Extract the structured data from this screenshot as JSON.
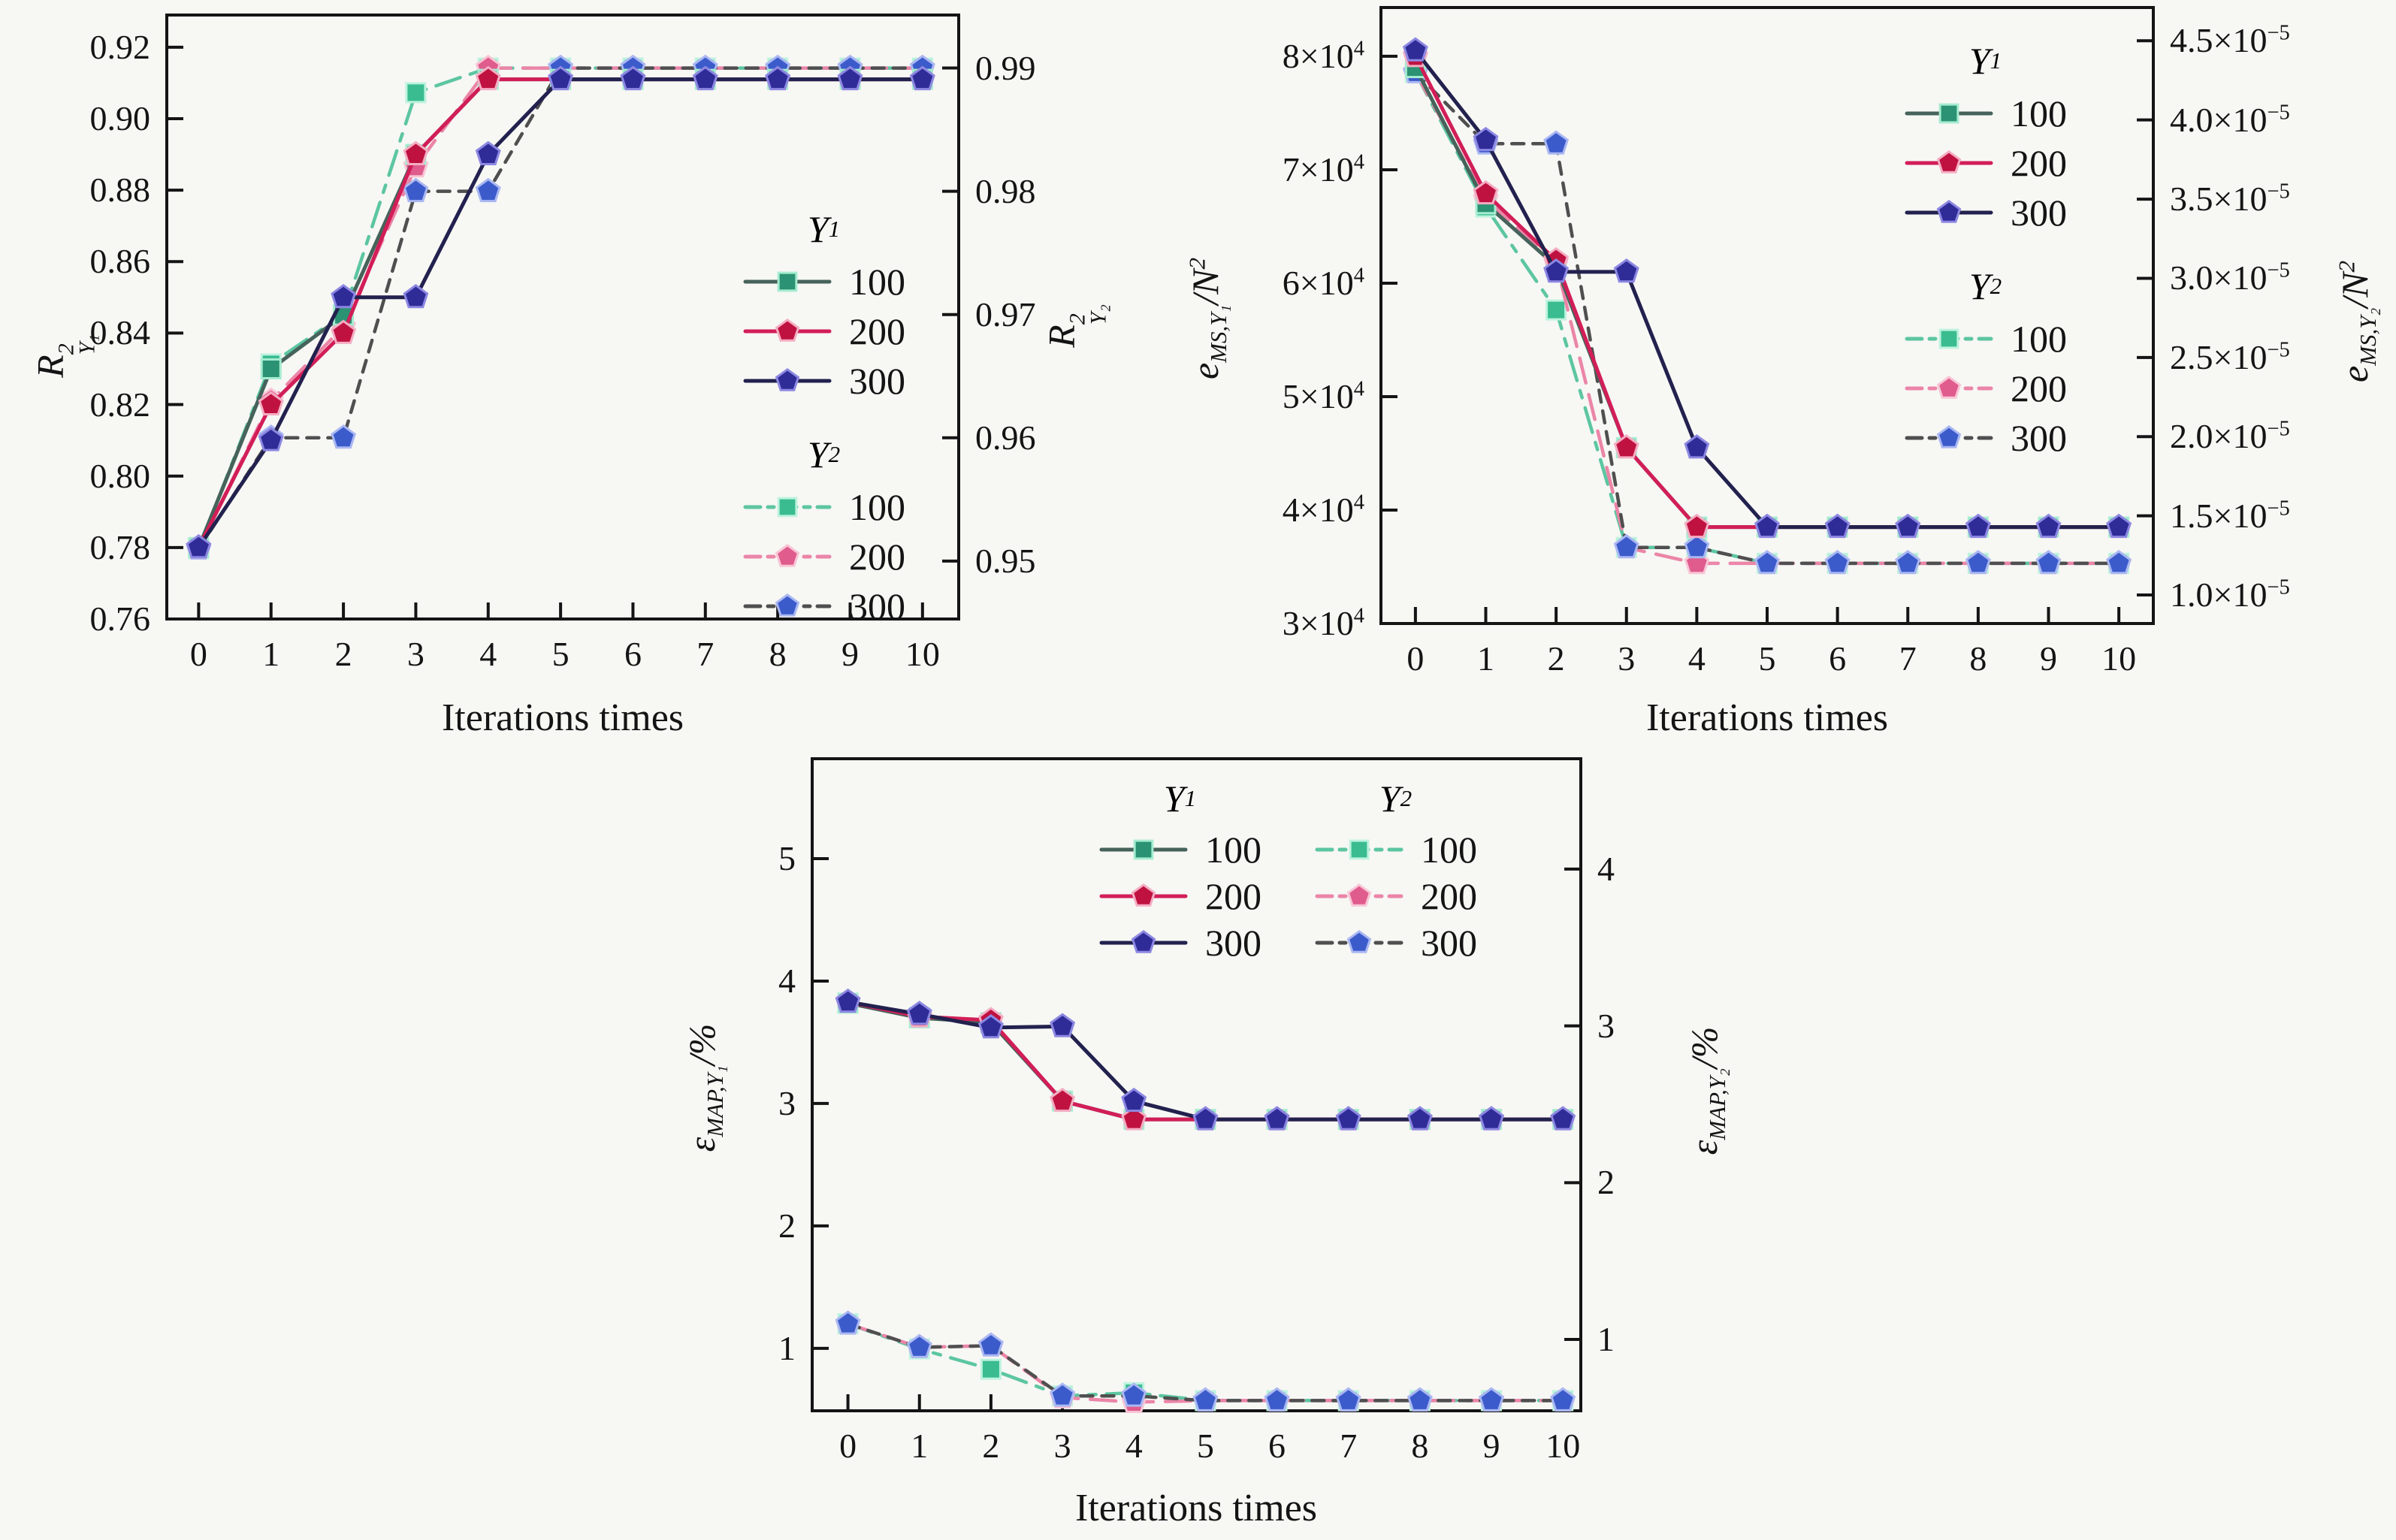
{
  "figure": {
    "background": "#f7f7f4",
    "axis_color": "#141414",
    "x_axis_label": "Iterations times"
  },
  "chart_data": [
    {
      "id": "c1",
      "type": "line",
      "x": [
        0,
        1,
        2,
        3,
        4,
        5,
        6,
        7,
        8,
        9,
        10
      ],
      "xlabel": "Iterations times",
      "x_ticks": [
        "0",
        "1",
        "2",
        "3",
        "4",
        "5",
        "6",
        "7",
        "8",
        "9",
        "10"
      ],
      "axes": {
        "left": {
          "label": "R^{2}_{Y₁}",
          "lim": [
            0.76,
            0.929
          ],
          "ticks": [
            {
              "v": 0.76,
              "t": "0.76"
            },
            {
              "v": 0.78,
              "t": "0.78"
            },
            {
              "v": 0.8,
              "t": "0.80"
            },
            {
              "v": 0.82,
              "t": "0.82"
            },
            {
              "v": 0.84,
              "t": "0.84"
            },
            {
              "v": 0.86,
              "t": "0.86"
            },
            {
              "v": 0.88,
              "t": "0.88"
            },
            {
              "v": 0.9,
              "t": "0.90"
            },
            {
              "v": 0.92,
              "t": "0.92"
            }
          ]
        },
        "right": {
          "label": "R^{2}_{Y₂}",
          "lim": [
            0.9453,
            0.9943
          ],
          "ticks": [
            {
              "v": 0.95,
              "t": "0.95"
            },
            {
              "v": 0.96,
              "t": "0.96"
            },
            {
              "v": 0.97,
              "t": "0.97"
            },
            {
              "v": 0.98,
              "t": "0.98"
            },
            {
              "v": 0.99,
              "t": "0.99"
            }
          ]
        }
      },
      "xlim": [
        -0.44,
        10.5
      ],
      "geom": {
        "plot": {
          "l": 222,
          "t": 20,
          "r": 1276,
          "b": 824
        }
      },
      "legend": {
        "blocks": [
          {
            "header": "Y_{1}",
            "labels": [
              "100",
              "200",
              "300"
            ],
            "series": [
              0,
              1,
              2
            ]
          },
          {
            "header": "Y_{2}",
            "labels": [
              "100",
              "200",
              "300"
            ],
            "series": [
              3,
              4,
              5
            ]
          }
        ]
      },
      "series": [
        {
          "name": "Y1-100",
          "axis": "left",
          "marker": "square",
          "line": "#46635b",
          "fill": "#2b9273",
          "edge": "#a5ecd0",
          "dash": null,
          "values": [
            0.78,
            0.83,
            0.845,
            0.89,
            0.911,
            0.911,
            0.911,
            0.911,
            0.911,
            0.911,
            0.911
          ]
        },
        {
          "name": "Y1-200",
          "axis": "left",
          "marker": "pentagon",
          "line": "#d21e57",
          "fill": "#bf1240",
          "edge": "#f4aec3",
          "dash": null,
          "values": [
            0.78,
            0.82,
            0.84,
            0.89,
            0.911,
            0.911,
            0.911,
            0.911,
            0.911,
            0.911,
            0.911
          ]
        },
        {
          "name": "Y1-300",
          "axis": "left",
          "marker": "pentagon",
          "line": "#22214e",
          "fill": "#2f2c98",
          "edge": "#8d88e2",
          "dash": null,
          "values": [
            0.78,
            0.81,
            0.85,
            0.85,
            0.89,
            0.911,
            0.911,
            0.911,
            0.911,
            0.911,
            0.911
          ]
        },
        {
          "name": "Y2-100",
          "axis": "right",
          "marker": "square",
          "line": "#5cc6a1",
          "fill": "#3abc90",
          "edge": "#bdf3de",
          "dash": "34 14 10 14",
          "values": [
            0.951,
            0.966,
            0.97,
            0.988,
            0.99,
            0.99,
            0.99,
            0.99,
            0.99,
            0.99,
            0.99
          ]
        },
        {
          "name": "Y2-200",
          "axis": "right",
          "marker": "pentagon",
          "line": "#eb85a7",
          "fill": "#df5c8d",
          "edge": "#f9c5d5",
          "dash": "34 16",
          "values": [
            0.951,
            0.963,
            0.969,
            0.982,
            0.99,
            0.99,
            0.99,
            0.99,
            0.99,
            0.99,
            0.99
          ]
        },
        {
          "name": "Y2-300",
          "axis": "right",
          "marker": "pentagon",
          "line": "#4f4f4f",
          "fill": "#3c5bcb",
          "edge": "#aab8f2",
          "dash": "16 12",
          "values": [
            0.951,
            0.96,
            0.96,
            0.98,
            0.98,
            0.99,
            0.99,
            0.99,
            0.99,
            0.99,
            0.99
          ]
        }
      ]
    },
    {
      "id": "c2",
      "type": "line",
      "x": [
        0,
        1,
        2,
        3,
        4,
        5,
        6,
        7,
        8,
        9,
        10
      ],
      "xlabel": "Iterations times",
      "x_ticks": [
        "0",
        "1",
        "2",
        "3",
        "4",
        "5",
        "6",
        "7",
        "8",
        "9",
        "10"
      ],
      "axes": {
        "left": {
          "label": "e_{MS,Y₁}/N^{2}",
          "lim": [
            30000,
            84300
          ],
          "ticks": [
            {
              "v": 30000,
              "t": "3×10^{4}"
            },
            {
              "v": 40000,
              "t": "4×10^{4}"
            },
            {
              "v": 50000,
              "t": "5×10^{4}"
            },
            {
              "v": 60000,
              "t": "6×10^{4}"
            },
            {
              "v": 70000,
              "t": "7×10^{4}"
            },
            {
              "v": 80000,
              "t": "8×10^{4}"
            }
          ]
        },
        "right": {
          "label": "e_{MS,Y₂}/N^{2}",
          "lim": [
            8.2e-06,
            4.71e-05
          ],
          "ticks": [
            {
              "v": 1e-05,
              "t": "1.0×10^{−5}"
            },
            {
              "v": 1.5e-05,
              "t": "1.5×10^{−5}"
            },
            {
              "v": 2e-05,
              "t": "2.0×10^{−5}"
            },
            {
              "v": 2.5e-05,
              "t": "2.5×10^{−5}"
            },
            {
              "v": 3e-05,
              "t": "3.0×10^{−5}"
            },
            {
              "v": 3.5e-05,
              "t": "3.5×10^{−5}"
            },
            {
              "v": 4e-05,
              "t": "4.0×10^{−5}"
            },
            {
              "v": 4.5e-05,
              "t": "4.5×10^{−5}"
            }
          ]
        }
      },
      "xlim": [
        -0.49,
        10.49
      ],
      "geom": {
        "plot": {
          "l": 1838,
          "t": 10,
          "r": 2866,
          "b": 830
        }
      },
      "legend": {
        "blocks": [
          {
            "header": "Y_{1}",
            "labels": [
              "100",
              "200",
              "300"
            ],
            "series": [
              0,
              1,
              2
            ]
          },
          {
            "header": "Y_{2}",
            "labels": [
              "100",
              "200",
              "300"
            ],
            "series": [
              3,
              4,
              5
            ]
          }
        ]
      },
      "series": [
        {
          "name": "Y1-100",
          "axis": "left",
          "marker": "square",
          "line": "#46635b",
          "fill": "#2b9273",
          "edge": "#a5ecd0",
          "dash": null,
          "values": [
            79000,
            67000,
            61500,
            45500,
            38500,
            38500,
            38500,
            38500,
            38500,
            38500,
            38500
          ]
        },
        {
          "name": "Y1-200",
          "axis": "left",
          "marker": "pentagon",
          "line": "#d21e57",
          "fill": "#bf1240",
          "edge": "#f4aec3",
          "dash": null,
          "values": [
            80000,
            67900,
            62000,
            45500,
            38500,
            38500,
            38500,
            38500,
            38500,
            38500,
            38500
          ]
        },
        {
          "name": "Y1-300",
          "axis": "left",
          "marker": "pentagon",
          "line": "#22214e",
          "fill": "#2f2c98",
          "edge": "#8d88e2",
          "dash": null,
          "values": [
            80500,
            72600,
            61000,
            61000,
            45500,
            38500,
            38500,
            38500,
            38500,
            38500,
            38500
          ]
        },
        {
          "name": "Y2-100",
          "axis": "right",
          "marker": "square",
          "line": "#5cc6a1",
          "fill": "#3abc90",
          "edge": "#bdf3de",
          "dash": "34 14 10 14",
          "values": [
            4.3e-05,
            3.45e-05,
            2.8e-05,
            1.3e-05,
            1.3e-05,
            1.2e-05,
            1.2e-05,
            1.2e-05,
            1.2e-05,
            1.2e-05,
            1.2e-05
          ]
        },
        {
          "name": "Y2-200",
          "axis": "right",
          "marker": "pentagon",
          "line": "#eb85a7",
          "fill": "#df5c8d",
          "edge": "#f9c5d5",
          "dash": "34 16",
          "values": [
            4.3e-05,
            3.5e-05,
            3.1e-05,
            1.3e-05,
            1.2e-05,
            1.2e-05,
            1.2e-05,
            1.2e-05,
            1.2e-05,
            1.2e-05,
            1.2e-05
          ]
        },
        {
          "name": "Y2-300",
          "axis": "right",
          "marker": "pentagon",
          "line": "#4f4f4f",
          "fill": "#3c5bcb",
          "edge": "#aab8f2",
          "dash": "16 12",
          "values": [
            4.3e-05,
            3.85e-05,
            3.85e-05,
            1.3e-05,
            1.3e-05,
            1.2e-05,
            1.2e-05,
            1.2e-05,
            1.2e-05,
            1.2e-05,
            1.2e-05
          ]
        }
      ]
    },
    {
      "id": "c3",
      "type": "line",
      "x": [
        0,
        1,
        2,
        3,
        4,
        5,
        6,
        7,
        8,
        9,
        10
      ],
      "xlabel": "Iterations times",
      "x_ticks": [
        "0",
        "1",
        "2",
        "3",
        "4",
        "5",
        "6",
        "7",
        "8",
        "9",
        "10"
      ],
      "axes": {
        "left": {
          "label": "ε_{MAP,Y₁}/%",
          "lim": [
            0.49,
            5.816
          ],
          "ticks": [
            {
              "v": 1,
              "t": "1"
            },
            {
              "v": 2,
              "t": "2"
            },
            {
              "v": 3,
              "t": "3"
            },
            {
              "v": 4,
              "t": "4"
            },
            {
              "v": 5,
              "t": "5"
            }
          ]
        },
        "right": {
          "label": "ε_{MAP,Y₂}/%",
          "lim": [
            0.545,
            4.704
          ],
          "ticks": [
            {
              "v": 1,
              "t": "1"
            },
            {
              "v": 2,
              "t": "2"
            },
            {
              "v": 3,
              "t": "3"
            },
            {
              "v": 4,
              "t": "4"
            }
          ]
        }
      },
      "xlim": [
        -0.5,
        10.25
      ],
      "geom": {
        "plot": {
          "l": 1081,
          "t": 1010,
          "r": 2104,
          "b": 1878
        }
      },
      "legend": {
        "blocks": [
          {
            "header": "Y_{1}",
            "labels": [
              "100",
              "200",
              "300"
            ],
            "series": [
              0,
              1,
              2
            ]
          },
          {
            "header": "Y_{2}",
            "labels": [
              "100",
              "200",
              "300"
            ],
            "series": [
              3,
              4,
              5
            ]
          }
        ]
      },
      "series": [
        {
          "name": "Y1-100",
          "axis": "left",
          "marker": "square",
          "line": "#46635b",
          "fill": "#2b9273",
          "edge": "#a5ecd0",
          "dash": null,
          "values": [
            3.82,
            3.7,
            3.66,
            3.02,
            2.87,
            2.87,
            2.87,
            2.87,
            2.87,
            2.87,
            2.87
          ]
        },
        {
          "name": "Y1-200",
          "axis": "left",
          "marker": "pentagon",
          "line": "#d21e57",
          "fill": "#bf1240",
          "edge": "#f4aec3",
          "dash": null,
          "values": [
            3.83,
            3.71,
            3.68,
            3.02,
            2.87,
            2.87,
            2.87,
            2.87,
            2.87,
            2.87,
            2.87
          ]
        },
        {
          "name": "Y1-300",
          "axis": "left",
          "marker": "pentagon",
          "line": "#22214e",
          "fill": "#2f2c98",
          "edge": "#8d88e2",
          "dash": null,
          "values": [
            3.83,
            3.73,
            3.62,
            3.63,
            3.02,
            2.87,
            2.87,
            2.87,
            2.87,
            2.87,
            2.87
          ]
        },
        {
          "name": "Y2-100",
          "axis": "right",
          "marker": "square",
          "line": "#5cc6a1",
          "fill": "#3abc90",
          "edge": "#bdf3de",
          "dash": "34 14 10 14",
          "values": [
            1.1,
            0.94,
            0.81,
            0.64,
            0.66,
            0.61,
            0.61,
            0.61,
            0.61,
            0.61,
            0.61
          ]
        },
        {
          "name": "Y2-200",
          "axis": "right",
          "marker": "pentagon",
          "line": "#eb85a7",
          "fill": "#df5c8d",
          "edge": "#f9c5d5",
          "dash": "34 16",
          "values": [
            1.1,
            0.95,
            0.96,
            0.63,
            0.6,
            0.61,
            0.61,
            0.61,
            0.61,
            0.61,
            0.61
          ]
        },
        {
          "name": "Y2-300",
          "axis": "right",
          "marker": "pentagon",
          "line": "#4f4f4f",
          "fill": "#3c5bcb",
          "edge": "#aab8f2",
          "dash": "16 12",
          "values": [
            1.1,
            0.95,
            0.96,
            0.64,
            0.64,
            0.61,
            0.61,
            0.61,
            0.61,
            0.61,
            0.61
          ]
        }
      ]
    }
  ]
}
